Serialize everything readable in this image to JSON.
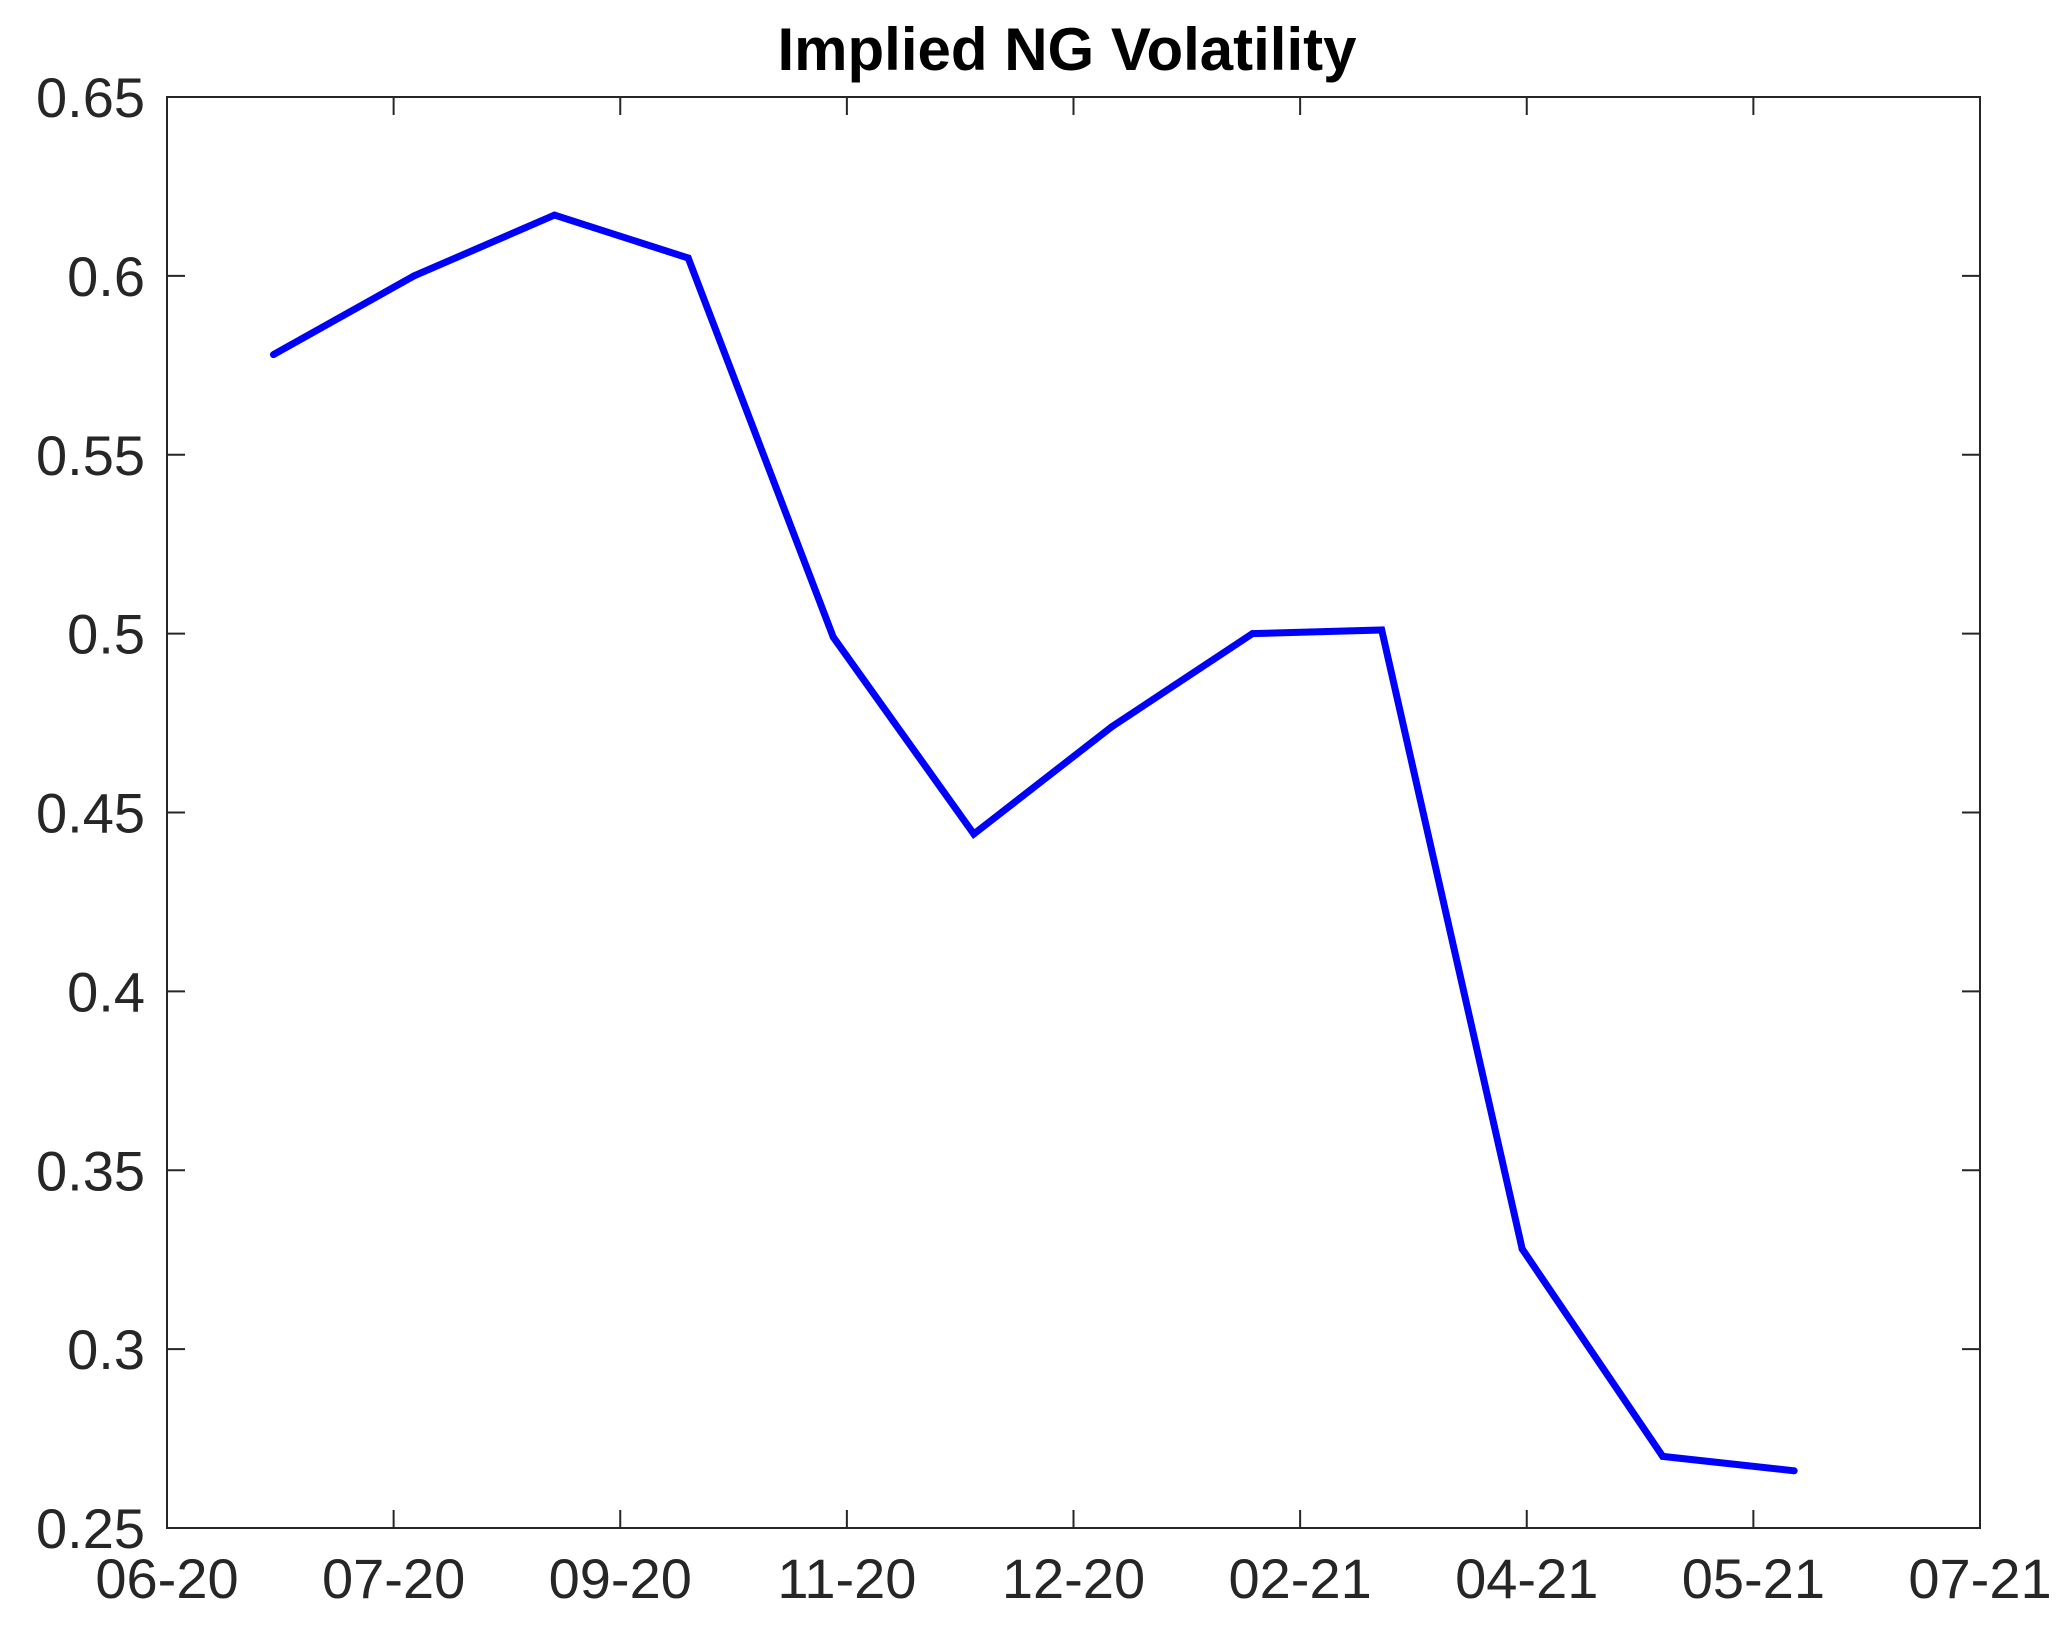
{
  "chart_data": {
    "type": "line",
    "title": "Implied NG  Volatility",
    "xlabel": "",
    "ylabel": "",
    "x_ticks": [
      "06-20",
      "07-20",
      "09-20",
      "11-20",
      "12-20",
      "02-21",
      "04-21",
      "05-21",
      "07-21"
    ],
    "y_ticks": [
      "0.25",
      "0.3",
      "0.35",
      "0.4",
      "0.45",
      "0.5",
      "0.55",
      "0.6",
      "0.65"
    ],
    "xlim": [
      0,
      8
    ],
    "ylim": [
      0.25,
      0.65
    ],
    "grid": false,
    "legend": "none",
    "series": [
      {
        "color": "#0000FF",
        "x": [
          0.47,
          1.09,
          1.71,
          2.3,
          2.94,
          3.56,
          4.17,
          4.79,
          5.36,
          5.98,
          6.6,
          7.18
        ],
        "values": [
          0.578,
          0.6,
          0.617,
          0.605,
          0.499,
          0.444,
          0.474,
          0.5,
          0.501,
          0.328,
          0.27,
          0.266
        ]
      }
    ]
  }
}
